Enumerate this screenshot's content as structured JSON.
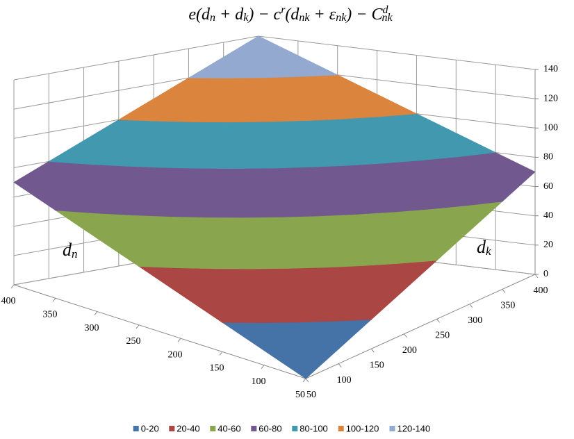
{
  "chart_data": {
    "type": "surface",
    "title": [
      "e(d",
      "n",
      " + d",
      "k",
      ") − c",
      "r",
      "(d",
      "nk",
      " + ε",
      "nk",
      ") − C",
      "d",
      "nk"
    ],
    "x_label": [
      "d",
      "n"
    ],
    "y_label": [
      "d",
      "k"
    ],
    "x": [
      50,
      100,
      150,
      200,
      250,
      300,
      350,
      400
    ],
    "y": [
      50,
      100,
      150,
      200,
      250,
      300,
      350,
      400
    ],
    "z": [
      [
        0,
        10,
        20,
        30,
        40,
        50,
        60,
        70
      ],
      [
        10,
        20,
        30,
        40,
        50,
        60,
        70,
        80
      ],
      [
        20,
        30,
        40,
        50,
        60,
        70,
        80,
        90
      ],
      [
        30,
        40,
        50,
        60,
        70,
        80,
        90,
        100
      ],
      [
        40,
        50,
        60,
        70,
        80,
        90,
        100,
        110
      ],
      [
        50,
        60,
        70,
        80,
        90,
        100,
        110,
        120
      ],
      [
        60,
        70,
        80,
        90,
        100,
        110,
        120,
        130
      ],
      [
        70,
        80,
        90,
        100,
        110,
        120,
        130,
        140
      ]
    ],
    "xlim": [
      50,
      400
    ],
    "ylim": [
      50,
      400
    ],
    "zlim": [
      0,
      140
    ],
    "xticks": [
      50,
      100,
      150,
      200,
      250,
      300,
      350,
      400
    ],
    "yticks": [
      50,
      100,
      150,
      200,
      250,
      300,
      350,
      400
    ],
    "zticks": [
      0,
      20,
      40,
      60,
      80,
      100,
      120,
      140
    ],
    "grid": true,
    "legend": "bottom",
    "series": [
      {
        "name": "0-20",
        "color": "#4572a7"
      },
      {
        "name": "20-40",
        "color": "#aa4643"
      },
      {
        "name": "40-60",
        "color": "#89a54e"
      },
      {
        "name": "60-80",
        "color": "#71588f"
      },
      {
        "name": "80-100",
        "color": "#4198af"
      },
      {
        "name": "100-120",
        "color": "#db843d"
      },
      {
        "name": "120-140",
        "color": "#93a9cf"
      }
    ]
  }
}
